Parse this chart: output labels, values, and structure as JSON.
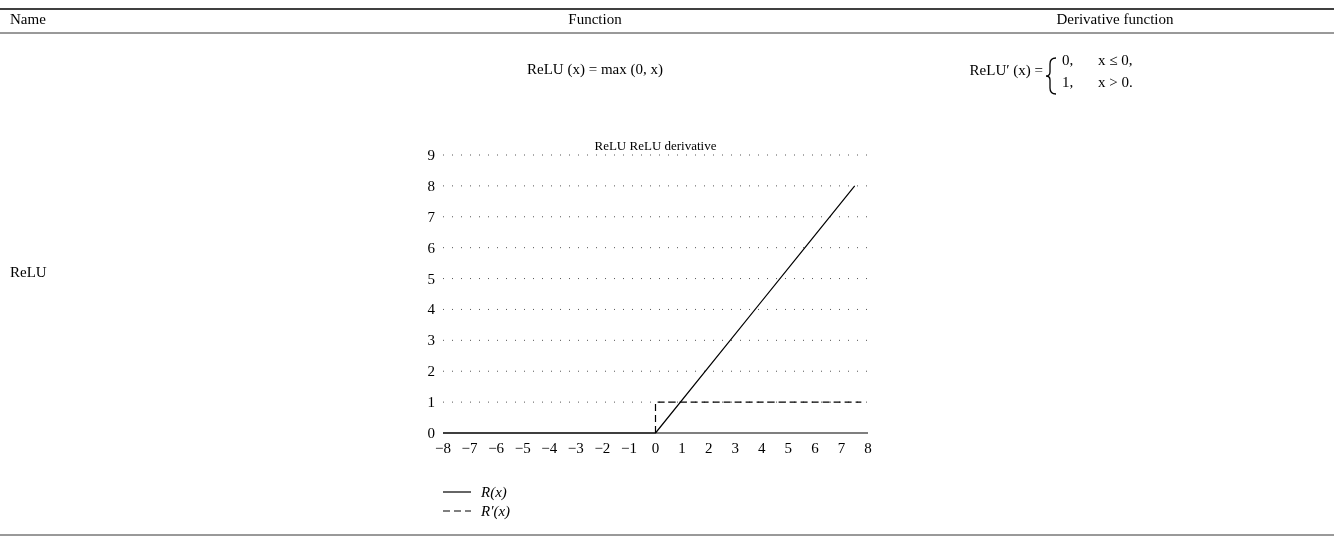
{
  "chart_data": {
    "type": "line",
    "title": "ReLU ReLU derivative",
    "series": [
      {
        "name": "R(x)",
        "color": "#000000",
        "line_style": "solid",
        "x": [
          -8,
          0,
          7.5
        ],
        "values": [
          0,
          0,
          8
        ]
      },
      {
        "name": "R′(x)",
        "color": "#000000",
        "line_style": "dashed",
        "x": [
          0,
          0,
          7.75
        ],
        "values": [
          0,
          1,
          1
        ]
      }
    ],
    "xlim": [
      -8,
      8
    ],
    "xticks": [
      {
        "value": -8,
        "label": "−8"
      },
      {
        "value": -7,
        "label": "−7"
      },
      {
        "value": -6,
        "label": "−6"
      },
      {
        "value": -5,
        "label": "−5"
      },
      {
        "value": -4,
        "label": "−4"
      },
      {
        "value": -3,
        "label": "−3"
      },
      {
        "value": -2,
        "label": "−2"
      },
      {
        "value": -1,
        "label": "−1"
      },
      0,
      1,
      2,
      3,
      4,
      5,
      6,
      7,
      8
    ],
    "ylim": [
      0,
      9
    ],
    "yticks": [
      0,
      1,
      2,
      3,
      4,
      5,
      6,
      7,
      8,
      9
    ],
    "grid": "y",
    "legend": "bottom",
    "annotations": [
      "Name",
      "Function",
      "Derivative function",
      "ReLU",
      "ReLU (x) = max (0, x)",
      "ReLU′ (x) =",
      "0,",
      "x ≤ 0,",
      "1,",
      "x > 0."
    ]
  }
}
